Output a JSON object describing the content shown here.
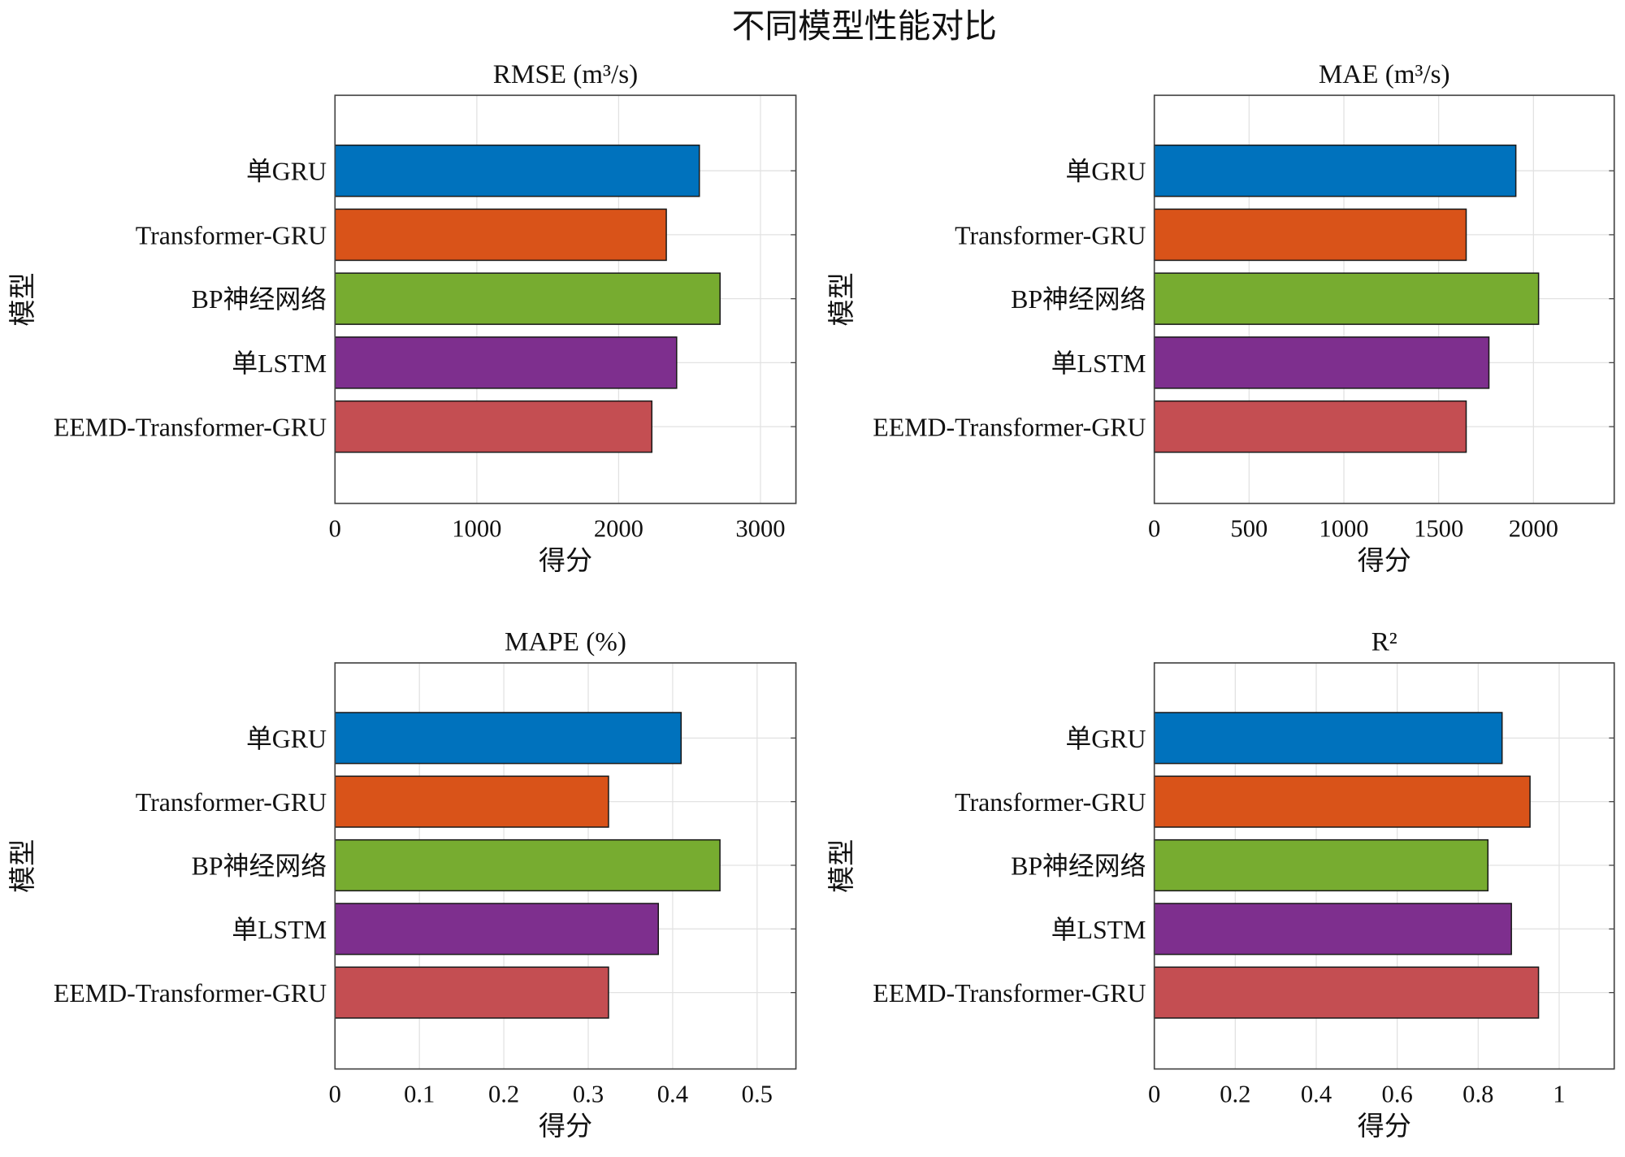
{
  "chart_data": {
    "title": "不同模型性能对比",
    "type": "bar",
    "orientation": "horizontal",
    "categories": [
      "单GRU",
      "Transformer-GRU",
      "BP神经网络",
      "单LSTM",
      "EEMD-Transformer-GRU"
    ],
    "colors": [
      "#0072BD",
      "#D95319",
      "#77AC30",
      "#7E2F8E",
      "#C44E52"
    ],
    "grid": true,
    "panels": [
      {
        "title": "RMSE (m³/s)",
        "xlabel": "得分",
        "ylabel": "模型",
        "xlim": [
          0,
          3250
        ],
        "xticks": [
          0,
          1000,
          2000,
          3000
        ],
        "xtick_labels": [
          "0",
          "1000",
          "2000",
          "3000"
        ],
        "values": [
          2569,
          2336,
          2715,
          2409,
          2234
        ]
      },
      {
        "title": "MAE (m³/s)",
        "xlabel": "得分",
        "ylabel": "模型",
        "xlim": [
          0,
          2426
        ],
        "xticks": [
          0,
          500,
          1000,
          1500,
          2000
        ],
        "xtick_labels": [
          "0",
          "500",
          "1000",
          "1500",
          "2000"
        ],
        "values": [
          1907,
          1645,
          2027,
          1765,
          1645
        ]
      },
      {
        "title": "MAPE (%)",
        "xlabel": "得分",
        "ylabel": "模型",
        "xlim": [
          0,
          0.546
        ],
        "xticks": [
          0,
          0.1,
          0.2,
          0.3,
          0.4,
          0.5
        ],
        "xtick_labels": [
          "0",
          "0.1",
          "0.2",
          "0.3",
          "0.4",
          "0.5"
        ],
        "values": [
          0.41,
          0.324,
          0.456,
          0.383,
          0.324
        ]
      },
      {
        "title": "R²",
        "xlabel": "得分",
        "ylabel": "模型",
        "xlim": [
          0,
          1.136
        ],
        "xticks": [
          0,
          0.2,
          0.4,
          0.6,
          0.8,
          1
        ],
        "xtick_labels": [
          "0",
          "0.2",
          "0.4",
          "0.6",
          "0.8",
          "1"
        ],
        "values": [
          0.859,
          0.928,
          0.824,
          0.882,
          0.949
        ]
      }
    ]
  }
}
